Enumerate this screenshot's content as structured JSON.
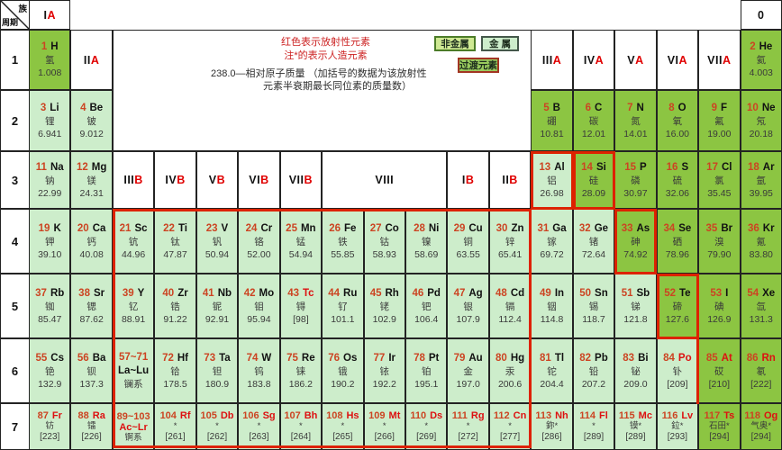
{
  "corner": {
    "group_label": "族",
    "period_label": "周期"
  },
  "legend": {
    "note_radioactive": "红色表示放射性元素",
    "note_artificial": "注*的表示人造元素",
    "note_mass_1": "238.0—相对原子质量 （加括号的数据为该放射性",
    "note_mass_2": "元素半衰期最长同位素的质量数）",
    "box_nonmetal": "非金属",
    "box_metal": "金 属",
    "box_transition": "过渡元素"
  },
  "colors": {
    "nonmetal_bg": "#8cc542",
    "metal_bg": "#cdedcb",
    "atomic_number_text": "#cc4422",
    "radioactive_text": "#dd1111",
    "boundary_red": "#dd2200",
    "grid_line": "#232323"
  },
  "periods": [
    "1",
    "2",
    "3",
    "4",
    "5",
    "6",
    "7"
  ],
  "group_headers": [
    {
      "black": "I",
      "red": "A",
      "col": 1,
      "row": 0
    },
    {
      "black": "0",
      "red": "",
      "col": 18,
      "row": 0
    },
    {
      "black": "II",
      "red": "A",
      "col": 2,
      "row": 1
    },
    {
      "black": "III",
      "red": "A",
      "col": 13,
      "row": 1
    },
    {
      "black": "IV",
      "red": "A",
      "col": 14,
      "row": 1
    },
    {
      "black": "V",
      "red": "A",
      "col": 15,
      "row": 1
    },
    {
      "black": "VI",
      "red": "A",
      "col": 16,
      "row": 1
    },
    {
      "black": "VII",
      "red": "A",
      "col": 17,
      "row": 1
    },
    {
      "black": "III",
      "red": "B",
      "col": 3,
      "row": 3
    },
    {
      "black": "IV",
      "red": "B",
      "col": 4,
      "row": 3
    },
    {
      "black": "V",
      "red": "B",
      "col": 5,
      "row": 3
    },
    {
      "black": "VI",
      "red": "B",
      "col": 6,
      "row": 3
    },
    {
      "black": "VII",
      "red": "B",
      "col": 7,
      "row": 3
    },
    {
      "black": "VIII",
      "red": "",
      "col": 8,
      "row": 3,
      "span": 3
    },
    {
      "black": "I",
      "red": "B",
      "col": 11,
      "row": 3
    },
    {
      "black": "II",
      "red": "B",
      "col": 12,
      "row": 3
    }
  ],
  "series_cells": [
    {
      "range": "57~71",
      "symbols": "La~Lu",
      "name": "镧系",
      "col": 3,
      "period": 6,
      "radio": false
    },
    {
      "range": "89~103",
      "symbols": "Ac~Lr",
      "name": "锕系",
      "col": 3,
      "period": 7,
      "radio": true
    }
  ],
  "elements": [
    {
      "n": 1,
      "sym": "H",
      "name": "氢",
      "mass": "1.008",
      "col": 1,
      "period": 1,
      "type": "nonmetal"
    },
    {
      "n": 2,
      "sym": "He",
      "name": "氦",
      "mass": "4.003",
      "col": 18,
      "period": 1,
      "type": "nonmetal"
    },
    {
      "n": 3,
      "sym": "Li",
      "name": "锂",
      "mass": "6.941",
      "col": 1,
      "period": 2,
      "type": "metal"
    },
    {
      "n": 4,
      "sym": "Be",
      "name": "铍",
      "mass": "9.012",
      "col": 2,
      "period": 2,
      "type": "metal"
    },
    {
      "n": 5,
      "sym": "B",
      "name": "硼",
      "mass": "10.81",
      "col": 13,
      "period": 2,
      "type": "nonmetal"
    },
    {
      "n": 6,
      "sym": "C",
      "name": "碳",
      "mass": "12.01",
      "col": 14,
      "period": 2,
      "type": "nonmetal"
    },
    {
      "n": 7,
      "sym": "N",
      "name": "氮",
      "mass": "14.01",
      "col": 15,
      "period": 2,
      "type": "nonmetal"
    },
    {
      "n": 8,
      "sym": "O",
      "name": "氧",
      "mass": "16.00",
      "col": 16,
      "period": 2,
      "type": "nonmetal"
    },
    {
      "n": 9,
      "sym": "F",
      "name": "氟",
      "mass": "19.00",
      "col": 17,
      "period": 2,
      "type": "nonmetal"
    },
    {
      "n": 10,
      "sym": "Ne",
      "name": "氖",
      "mass": "20.18",
      "col": 18,
      "period": 2,
      "type": "nonmetal"
    },
    {
      "n": 11,
      "sym": "Na",
      "name": "钠",
      "mass": "22.99",
      "col": 1,
      "period": 3,
      "type": "metal"
    },
    {
      "n": 12,
      "sym": "Mg",
      "name": "镁",
      "mass": "24.31",
      "col": 2,
      "period": 3,
      "type": "metal"
    },
    {
      "n": 13,
      "sym": "Al",
      "name": "铝",
      "mass": "26.98",
      "col": 13,
      "period": 3,
      "type": "metal"
    },
    {
      "n": 14,
      "sym": "Si",
      "name": "硅",
      "mass": "28.09",
      "col": 14,
      "period": 3,
      "type": "nonmetal"
    },
    {
      "n": 15,
      "sym": "P",
      "name": "磷",
      "mass": "30.97",
      "col": 15,
      "period": 3,
      "type": "nonmetal"
    },
    {
      "n": 16,
      "sym": "S",
      "name": "硫",
      "mass": "32.06",
      "col": 16,
      "period": 3,
      "type": "nonmetal"
    },
    {
      "n": 17,
      "sym": "Cl",
      "name": "氯",
      "mass": "35.45",
      "col": 17,
      "period": 3,
      "type": "nonmetal"
    },
    {
      "n": 18,
      "sym": "Ar",
      "name": "氩",
      "mass": "39.95",
      "col": 18,
      "period": 3,
      "type": "nonmetal"
    },
    {
      "n": 19,
      "sym": "K",
      "name": "钾",
      "mass": "39.10",
      "col": 1,
      "period": 4,
      "type": "metal"
    },
    {
      "n": 20,
      "sym": "Ca",
      "name": "钙",
      "mass": "40.08",
      "col": 2,
      "period": 4,
      "type": "metal"
    },
    {
      "n": 21,
      "sym": "Sc",
      "name": "钪",
      "mass": "44.96",
      "col": 3,
      "period": 4,
      "type": "metal"
    },
    {
      "n": 22,
      "sym": "Ti",
      "name": "钛",
      "mass": "47.87",
      "col": 4,
      "period": 4,
      "type": "metal"
    },
    {
      "n": 23,
      "sym": "V",
      "name": "钒",
      "mass": "50.94",
      "col": 5,
      "period": 4,
      "type": "metal"
    },
    {
      "n": 24,
      "sym": "Cr",
      "name": "铬",
      "mass": "52.00",
      "col": 6,
      "period": 4,
      "type": "metal"
    },
    {
      "n": 25,
      "sym": "Mn",
      "name": "锰",
      "mass": "54.94",
      "col": 7,
      "period": 4,
      "type": "metal"
    },
    {
      "n": 26,
      "sym": "Fe",
      "name": "铁",
      "mass": "55.85",
      "col": 8,
      "period": 4,
      "type": "metal"
    },
    {
      "n": 27,
      "sym": "Co",
      "name": "钴",
      "mass": "58.93",
      "col": 9,
      "period": 4,
      "type": "metal"
    },
    {
      "n": 28,
      "sym": "Ni",
      "name": "镍",
      "mass": "58.69",
      "col": 10,
      "period": 4,
      "type": "metal"
    },
    {
      "n": 29,
      "sym": "Cu",
      "name": "铜",
      "mass": "63.55",
      "col": 11,
      "period": 4,
      "type": "metal"
    },
    {
      "n": 30,
      "sym": "Zn",
      "name": "锌",
      "mass": "65.41",
      "col": 12,
      "period": 4,
      "type": "metal"
    },
    {
      "n": 31,
      "sym": "Ga",
      "name": "镓",
      "mass": "69.72",
      "col": 13,
      "period": 4,
      "type": "metal"
    },
    {
      "n": 32,
      "sym": "Ge",
      "name": "锗",
      "mass": "72.64",
      "col": 14,
      "period": 4,
      "type": "metal"
    },
    {
      "n": 33,
      "sym": "As",
      "name": "砷",
      "mass": "74.92",
      "col": 15,
      "period": 4,
      "type": "nonmetal"
    },
    {
      "n": 34,
      "sym": "Se",
      "name": "硒",
      "mass": "78.96",
      "col": 16,
      "period": 4,
      "type": "nonmetal"
    },
    {
      "n": 35,
      "sym": "Br",
      "name": "溴",
      "mass": "79.90",
      "col": 17,
      "period": 4,
      "type": "nonmetal"
    },
    {
      "n": 36,
      "sym": "Kr",
      "name": "氪",
      "mass": "83.80",
      "col": 18,
      "period": 4,
      "type": "nonmetal"
    },
    {
      "n": 37,
      "sym": "Rb",
      "name": "铷",
      "mass": "85.47",
      "col": 1,
      "period": 5,
      "type": "metal"
    },
    {
      "n": 38,
      "sym": "Sr",
      "name": "锶",
      "mass": "87.62",
      "col": 2,
      "period": 5,
      "type": "metal"
    },
    {
      "n": 39,
      "sym": "Y",
      "name": "钇",
      "mass": "88.91",
      "col": 3,
      "period": 5,
      "type": "metal"
    },
    {
      "n": 40,
      "sym": "Zr",
      "name": "锆",
      "mass": "91.22",
      "col": 4,
      "period": 5,
      "type": "metal"
    },
    {
      "n": 41,
      "sym": "Nb",
      "name": "铌",
      "mass": "92.91",
      "col": 5,
      "period": 5,
      "type": "metal"
    },
    {
      "n": 42,
      "sym": "Mo",
      "name": "钼",
      "mass": "95.94",
      "col": 6,
      "period": 5,
      "type": "metal"
    },
    {
      "n": 43,
      "sym": "Tc",
      "name": "锝",
      "mass": "[98]",
      "col": 7,
      "period": 5,
      "type": "metal",
      "radio": true
    },
    {
      "n": 44,
      "sym": "Ru",
      "name": "钌",
      "mass": "101.1",
      "col": 8,
      "period": 5,
      "type": "metal"
    },
    {
      "n": 45,
      "sym": "Rh",
      "name": "铑",
      "mass": "102.9",
      "col": 9,
      "period": 5,
      "type": "metal"
    },
    {
      "n": 46,
      "sym": "Pd",
      "name": "钯",
      "mass": "106.4",
      "col": 10,
      "period": 5,
      "type": "metal"
    },
    {
      "n": 47,
      "sym": "Ag",
      "name": "银",
      "mass": "107.9",
      "col": 11,
      "period": 5,
      "type": "metal"
    },
    {
      "n": 48,
      "sym": "Cd",
      "name": "镉",
      "mass": "112.4",
      "col": 12,
      "period": 5,
      "type": "metal"
    },
    {
      "n": 49,
      "sym": "In",
      "name": "铟",
      "mass": "114.8",
      "col": 13,
      "period": 5,
      "type": "metal"
    },
    {
      "n": 50,
      "sym": "Sn",
      "name": "锡",
      "mass": "118.7",
      "col": 14,
      "period": 5,
      "type": "metal"
    },
    {
      "n": 51,
      "sym": "Sb",
      "name": "锑",
      "mass": "121.8",
      "col": 15,
      "period": 5,
      "type": "metal"
    },
    {
      "n": 52,
      "sym": "Te",
      "name": "碲",
      "mass": "127.6",
      "col": 16,
      "period": 5,
      "type": "nonmetal"
    },
    {
      "n": 53,
      "sym": "I",
      "name": "碘",
      "mass": "126.9",
      "col": 17,
      "period": 5,
      "type": "nonmetal"
    },
    {
      "n": 54,
      "sym": "Xe",
      "name": "氙",
      "mass": "131.3",
      "col": 18,
      "period": 5,
      "type": "nonmetal"
    },
    {
      "n": 55,
      "sym": "Cs",
      "name": "铯",
      "mass": "132.9",
      "col": 1,
      "period": 6,
      "type": "metal"
    },
    {
      "n": 56,
      "sym": "Ba",
      "name": "钡",
      "mass": "137.3",
      "col": 2,
      "period": 6,
      "type": "metal"
    },
    {
      "n": 72,
      "sym": "Hf",
      "name": "铪",
      "mass": "178.5",
      "col": 4,
      "period": 6,
      "type": "metal"
    },
    {
      "n": 73,
      "sym": "Ta",
      "name": "钽",
      "mass": "180.9",
      "col": 5,
      "period": 6,
      "type": "metal"
    },
    {
      "n": 74,
      "sym": "W",
      "name": "钨",
      "mass": "183.8",
      "col": 6,
      "period": 6,
      "type": "metal"
    },
    {
      "n": 75,
      "sym": "Re",
      "name": "铼",
      "mass": "186.2",
      "col": 7,
      "period": 6,
      "type": "metal"
    },
    {
      "n": 76,
      "sym": "Os",
      "name": "锇",
      "mass": "190.2",
      "col": 8,
      "period": 6,
      "type": "metal"
    },
    {
      "n": 77,
      "sym": "Ir",
      "name": "铱",
      "mass": "192.2",
      "col": 9,
      "period": 6,
      "type": "metal"
    },
    {
      "n": 78,
      "sym": "Pt",
      "name": "铂",
      "mass": "195.1",
      "col": 10,
      "period": 6,
      "type": "metal"
    },
    {
      "n": 79,
      "sym": "Au",
      "name": "金",
      "mass": "197.0",
      "col": 11,
      "period": 6,
      "type": "metal"
    },
    {
      "n": 80,
      "sym": "Hg",
      "name": "汞",
      "mass": "200.6",
      "col": 12,
      "period": 6,
      "type": "metal"
    },
    {
      "n": 81,
      "sym": "Tl",
      "name": "铊",
      "mass": "204.4",
      "col": 13,
      "period": 6,
      "type": "metal"
    },
    {
      "n": 82,
      "sym": "Pb",
      "name": "铅",
      "mass": "207.2",
      "col": 14,
      "period": 6,
      "type": "metal"
    },
    {
      "n": 83,
      "sym": "Bi",
      "name": "铋",
      "mass": "209.0",
      "col": 15,
      "period": 6,
      "type": "metal"
    },
    {
      "n": 84,
      "sym": "Po",
      "name": "钋",
      "mass": "[209]",
      "col": 16,
      "period": 6,
      "type": "metal",
      "radio": true
    },
    {
      "n": 85,
      "sym": "At",
      "name": "砹",
      "mass": "[210]",
      "col": 17,
      "period": 6,
      "type": "nonmetal",
      "radio": true
    },
    {
      "n": 86,
      "sym": "Rn",
      "name": "氡",
      "mass": "[222]",
      "col": 18,
      "period": 6,
      "type": "nonmetal",
      "radio": true
    },
    {
      "n": 87,
      "sym": "Fr",
      "name": "钫",
      "mass": "[223]",
      "col": 1,
      "period": 7,
      "type": "metal",
      "radio": true
    },
    {
      "n": 88,
      "sym": "Ra",
      "name": "镭",
      "mass": "[226]",
      "col": 2,
      "period": 7,
      "type": "metal",
      "radio": true
    },
    {
      "n": 104,
      "sym": "Rf",
      "name": "*",
      "mass": "[261]",
      "col": 4,
      "period": 7,
      "type": "metal",
      "radio": true
    },
    {
      "n": 105,
      "sym": "Db",
      "name": "*",
      "mass": "[262]",
      "col": 5,
      "period": 7,
      "type": "metal",
      "radio": true
    },
    {
      "n": 106,
      "sym": "Sg",
      "name": "*",
      "mass": "[263]",
      "col": 6,
      "period": 7,
      "type": "metal",
      "radio": true
    },
    {
      "n": 107,
      "sym": "Bh",
      "name": "*",
      "mass": "[264]",
      "col": 7,
      "period": 7,
      "type": "metal",
      "radio": true
    },
    {
      "n": 108,
      "sym": "Hs",
      "name": "*",
      "mass": "[265]",
      "col": 8,
      "period": 7,
      "type": "metal",
      "radio": true
    },
    {
      "n": 109,
      "sym": "Mt",
      "name": "*",
      "mass": "[266]",
      "col": 9,
      "period": 7,
      "type": "metal",
      "radio": true
    },
    {
      "n": 110,
      "sym": "Ds",
      "name": "*",
      "mass": "[269]",
      "col": 10,
      "period": 7,
      "type": "metal",
      "radio": true
    },
    {
      "n": 111,
      "sym": "Rg",
      "name": "*",
      "mass": "[272]",
      "col": 11,
      "period": 7,
      "type": "metal",
      "radio": true
    },
    {
      "n": 112,
      "sym": "Cn",
      "name": "*",
      "mass": "[277]",
      "col": 12,
      "period": 7,
      "type": "metal",
      "radio": true
    },
    {
      "n": 113,
      "sym": "Nh",
      "name": "鉨*",
      "mass": "[286]",
      "col": 13,
      "period": 7,
      "type": "metal",
      "radio": true
    },
    {
      "n": 114,
      "sym": "Fl",
      "name": "*",
      "mass": "[289]",
      "col": 14,
      "period": 7,
      "type": "metal",
      "radio": true
    },
    {
      "n": 115,
      "sym": "Mc",
      "name": "镆*",
      "mass": "[289]",
      "col": 15,
      "period": 7,
      "type": "metal",
      "radio": true
    },
    {
      "n": 116,
      "sym": "Lv",
      "name": "鉝*",
      "mass": "[293]",
      "col": 16,
      "period": 7,
      "type": "metal",
      "radio": true
    },
    {
      "n": 117,
      "sym": "Ts",
      "name": "石田*",
      "mass": "[294]",
      "col": 17,
      "period": 7,
      "type": "nonmetal",
      "radio": true
    },
    {
      "n": 118,
      "sym": "Og",
      "name": "气奥*",
      "mass": "[294]",
      "col": 18,
      "period": 7,
      "type": "nonmetal",
      "radio": true
    }
  ]
}
